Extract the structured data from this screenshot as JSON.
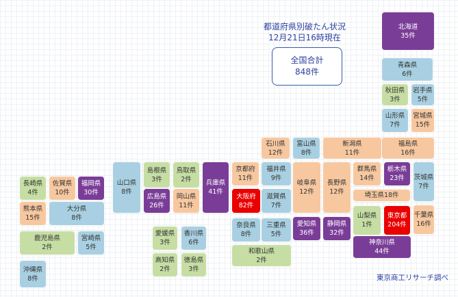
{
  "heading": {
    "line1": "都道府県別破たん状況",
    "line2": "12月21日16時現在"
  },
  "total": {
    "label": "全国合計",
    "value": "848件"
  },
  "source": "東京商工リサーチ調べ",
  "colors": {
    "green": "#c6dea4",
    "blue": "#a9d0e2",
    "orange": "#f7c8a0",
    "purple": "#7a3d97",
    "red": "#e90000"
  },
  "prefectures": [
    {
      "name": "北海道",
      "count": "35件",
      "color": "purple"
    },
    {
      "name": "青森県",
      "count": "6件",
      "color": "blue"
    },
    {
      "name": "秋田県",
      "count": "3件",
      "color": "green"
    },
    {
      "name": "岩手県",
      "count": "5件",
      "color": "blue"
    },
    {
      "name": "山形県",
      "count": "7件",
      "color": "blue"
    },
    {
      "name": "宮城県",
      "count": "15件",
      "color": "orange"
    },
    {
      "name": "福島県",
      "count": "16件",
      "color": "orange"
    },
    {
      "name": "新潟県",
      "count": "11件",
      "color": "orange"
    },
    {
      "name": "富山県",
      "count": "8件",
      "color": "blue"
    },
    {
      "name": "石川県",
      "count": "12件",
      "color": "orange"
    },
    {
      "name": "福井県",
      "count": "9件",
      "color": "blue"
    },
    {
      "name": "京都府",
      "count": "11件",
      "color": "orange"
    },
    {
      "name": "大阪府",
      "count": "82件",
      "color": "red"
    },
    {
      "name": "滋賀県",
      "count": "7件",
      "color": "blue"
    },
    {
      "name": "奈良県",
      "count": "8件",
      "color": "blue"
    },
    {
      "name": "三重県",
      "count": "5件",
      "color": "blue"
    },
    {
      "name": "和歌山県",
      "count": "2件",
      "color": "green"
    },
    {
      "name": "岐阜県",
      "count": "12件",
      "color": "orange"
    },
    {
      "name": "長野県",
      "count": "12件",
      "color": "orange"
    },
    {
      "name": "愛知県",
      "count": "36件",
      "color": "purple"
    },
    {
      "name": "静岡県",
      "count": "32件",
      "color": "purple"
    },
    {
      "name": "群馬県",
      "count": "14件",
      "color": "orange"
    },
    {
      "name": "栃木県",
      "count": "23件",
      "color": "purple"
    },
    {
      "name": "茨城県",
      "count": "7件",
      "color": "blue"
    },
    {
      "name": "埼玉県",
      "count": "18件",
      "color": "orange",
      "inline": true
    },
    {
      "name": "山梨県",
      "count": "1件",
      "color": "green"
    },
    {
      "name": "東京都",
      "count": "204件",
      "color": "red"
    },
    {
      "name": "千葉県",
      "count": "16件",
      "color": "orange"
    },
    {
      "name": "神奈川県",
      "count": "44件",
      "color": "purple"
    },
    {
      "name": "兵庫県",
      "count": "41件",
      "color": "purple"
    },
    {
      "name": "鳥取県",
      "count": "2件",
      "color": "green"
    },
    {
      "name": "島根県",
      "count": "3件",
      "color": "green"
    },
    {
      "name": "岡山県",
      "count": "11件",
      "color": "orange"
    },
    {
      "name": "広島県",
      "count": "26件",
      "color": "purple"
    },
    {
      "name": "山口県",
      "count": "8件",
      "color": "blue"
    },
    {
      "name": "愛媛県",
      "count": "3件",
      "color": "green"
    },
    {
      "name": "香川県",
      "count": "6件",
      "color": "blue"
    },
    {
      "name": "高知県",
      "count": "2件",
      "color": "green"
    },
    {
      "name": "徳島県",
      "count": "3件",
      "color": "green"
    },
    {
      "name": "長崎県",
      "count": "4件",
      "color": "green"
    },
    {
      "name": "佐賀県",
      "count": "10件",
      "color": "orange"
    },
    {
      "name": "福岡県",
      "count": "30件",
      "color": "purple"
    },
    {
      "name": "熊本県",
      "count": "15件",
      "color": "orange"
    },
    {
      "name": "大分県",
      "count": "8件",
      "color": "blue"
    },
    {
      "name": "鹿児島県",
      "count": "2件",
      "color": "green"
    },
    {
      "name": "宮崎県",
      "count": "5件",
      "color": "blue"
    },
    {
      "name": "沖縄県",
      "count": "8件",
      "color": "blue"
    }
  ]
}
